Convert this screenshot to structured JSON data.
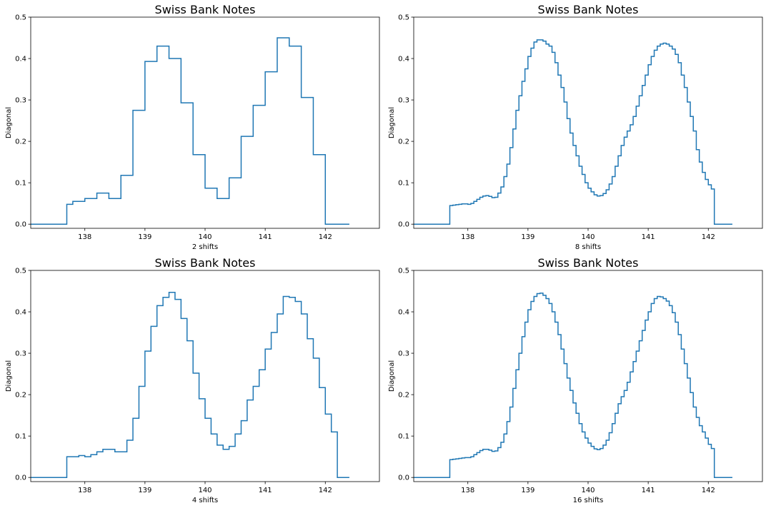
{
  "chart_data": [
    {
      "type": "line",
      "drawstyle": "steps-post",
      "title": "Swiss Bank Notes",
      "xlabel": "2 shifts",
      "ylabel": "Diagonal",
      "xlim": [
        137.1,
        142.9
      ],
      "ylim": [
        -0.01,
        0.5
      ],
      "xticks": [
        138,
        139,
        140,
        141,
        142
      ],
      "yticks": [
        0.0,
        0.1,
        0.2,
        0.3,
        0.4,
        0.5
      ],
      "color": "#1f77b4",
      "x": [
        137.1,
        137.7,
        137.8,
        138.0,
        138.2,
        138.4,
        138.6,
        138.8,
        139.0,
        139.2,
        139.4,
        139.6,
        139.8,
        140.0,
        140.2,
        140.4,
        140.6,
        140.8,
        141.0,
        141.2,
        141.4,
        141.6,
        141.8,
        142.0,
        142.4
      ],
      "y": [
        0.0,
        0.048,
        0.055,
        0.062,
        0.075,
        0.062,
        0.118,
        0.275,
        0.393,
        0.43,
        0.4,
        0.293,
        0.168,
        0.087,
        0.062,
        0.112,
        0.212,
        0.287,
        0.368,
        0.45,
        0.43,
        0.306,
        0.168,
        0.0,
        0.0
      ]
    },
    {
      "type": "line",
      "drawstyle": "steps-post",
      "title": "Swiss Bank Notes",
      "xlabel": "8 shifts",
      "ylabel": "Diagonal",
      "xlim": [
        137.1,
        142.9
      ],
      "ylim": [
        -0.01,
        0.5
      ],
      "xticks": [
        138,
        139,
        140,
        141,
        142
      ],
      "yticks": [
        0.0,
        0.1,
        0.2,
        0.3,
        0.4,
        0.5
      ],
      "color": "#1f77b4",
      "x": [
        137.1,
        137.7,
        137.75,
        137.8,
        137.85,
        137.9,
        137.95,
        138.0,
        138.05,
        138.1,
        138.15,
        138.2,
        138.25,
        138.3,
        138.35,
        138.4,
        138.45,
        138.5,
        138.55,
        138.6,
        138.65,
        138.7,
        138.75,
        138.8,
        138.85,
        138.9,
        138.95,
        139.0,
        139.05,
        139.1,
        139.15,
        139.2,
        139.25,
        139.3,
        139.35,
        139.4,
        139.45,
        139.5,
        139.55,
        139.6,
        139.65,
        139.7,
        139.75,
        139.8,
        139.85,
        139.9,
        139.95,
        140.0,
        140.05,
        140.1,
        140.15,
        140.2,
        140.25,
        140.3,
        140.35,
        140.4,
        140.45,
        140.5,
        140.55,
        140.6,
        140.65,
        140.7,
        140.75,
        140.8,
        140.85,
        140.9,
        140.95,
        141.0,
        141.05,
        141.1,
        141.15,
        141.2,
        141.25,
        141.3,
        141.35,
        141.4,
        141.45,
        141.5,
        141.55,
        141.6,
        141.65,
        141.7,
        141.75,
        141.8,
        141.85,
        141.9,
        141.95,
        142.0,
        142.05,
        142.1,
        142.15,
        142.2,
        142.25,
        142.3,
        142.4
      ],
      "y": [
        0.0,
        0.045,
        0.046,
        0.047,
        0.048,
        0.049,
        0.049,
        0.048,
        0.05,
        0.055,
        0.06,
        0.065,
        0.068,
        0.069,
        0.067,
        0.064,
        0.065,
        0.075,
        0.09,
        0.115,
        0.145,
        0.185,
        0.23,
        0.275,
        0.31,
        0.345,
        0.375,
        0.405,
        0.425,
        0.44,
        0.445,
        0.445,
        0.442,
        0.435,
        0.43,
        0.415,
        0.39,
        0.36,
        0.33,
        0.295,
        0.255,
        0.22,
        0.19,
        0.165,
        0.14,
        0.12,
        0.1,
        0.087,
        0.078,
        0.071,
        0.068,
        0.069,
        0.074,
        0.083,
        0.097,
        0.115,
        0.14,
        0.165,
        0.19,
        0.21,
        0.225,
        0.24,
        0.26,
        0.285,
        0.31,
        0.335,
        0.36,
        0.385,
        0.405,
        0.42,
        0.43,
        0.435,
        0.437,
        0.435,
        0.43,
        0.423,
        0.41,
        0.39,
        0.36,
        0.33,
        0.295,
        0.26,
        0.225,
        0.18,
        0.15,
        0.125,
        0.108,
        0.095,
        0.085,
        0.0,
        0.0,
        0.0,
        0.0,
        0.0,
        0.0
      ]
    },
    {
      "type": "line",
      "drawstyle": "steps-post",
      "title": "Swiss Bank Notes",
      "xlabel": "4 shifts",
      "ylabel": "Diagonal",
      "xlim": [
        137.1,
        142.9
      ],
      "ylim": [
        -0.01,
        0.5
      ],
      "xticks": [
        138,
        139,
        140,
        141,
        142
      ],
      "yticks": [
        0.0,
        0.1,
        0.2,
        0.3,
        0.4,
        0.5
      ],
      "color": "#1f77b4",
      "x": [
        137.1,
        137.7,
        137.8,
        137.9,
        138.0,
        138.1,
        138.2,
        138.3,
        138.4,
        138.5,
        138.6,
        138.7,
        138.8,
        138.9,
        139.0,
        139.1,
        139.2,
        139.3,
        139.4,
        139.5,
        139.6,
        139.7,
        139.8,
        139.9,
        140.0,
        140.1,
        140.2,
        140.3,
        140.4,
        140.5,
        140.6,
        140.7,
        140.8,
        140.9,
        141.0,
        141.1,
        141.2,
        141.3,
        141.4,
        141.5,
        141.6,
        141.7,
        141.8,
        141.9,
        142.0,
        142.1,
        142.2,
        142.4
      ],
      "y": [
        0.0,
        0.05,
        0.05,
        0.053,
        0.05,
        0.055,
        0.062,
        0.068,
        0.068,
        0.062,
        0.062,
        0.09,
        0.143,
        0.22,
        0.305,
        0.365,
        0.415,
        0.435,
        0.447,
        0.43,
        0.384,
        0.33,
        0.252,
        0.19,
        0.143,
        0.105,
        0.078,
        0.068,
        0.075,
        0.105,
        0.137,
        0.187,
        0.22,
        0.26,
        0.31,
        0.35,
        0.395,
        0.437,
        0.435,
        0.425,
        0.395,
        0.335,
        0.288,
        0.217,
        0.153,
        0.11,
        0.0,
        0.0
      ]
    },
    {
      "type": "line",
      "drawstyle": "steps-post",
      "title": "Swiss Bank Notes",
      "xlabel": "16 shifts",
      "ylabel": "Diagonal",
      "xlim": [
        137.1,
        142.9
      ],
      "ylim": [
        -0.01,
        0.5
      ],
      "xticks": [
        138,
        139,
        140,
        141,
        142
      ],
      "yticks": [
        0.0,
        0.1,
        0.2,
        0.3,
        0.4,
        0.5
      ],
      "color": "#1f77b4",
      "x": [
        137.1,
        137.7,
        137.75,
        137.8,
        137.85,
        137.9,
        137.95,
        138.0,
        138.05,
        138.1,
        138.15,
        138.2,
        138.25,
        138.3,
        138.35,
        138.4,
        138.45,
        138.5,
        138.55,
        138.6,
        138.65,
        138.7,
        138.75,
        138.8,
        138.85,
        138.9,
        138.95,
        139.0,
        139.05,
        139.1,
        139.15,
        139.2,
        139.25,
        139.3,
        139.35,
        139.4,
        139.45,
        139.5,
        139.55,
        139.6,
        139.65,
        139.7,
        139.75,
        139.8,
        139.85,
        139.9,
        139.95,
        140.0,
        140.05,
        140.1,
        140.15,
        140.2,
        140.25,
        140.3,
        140.35,
        140.4,
        140.45,
        140.5,
        140.55,
        140.6,
        140.65,
        140.7,
        140.75,
        140.8,
        140.85,
        140.9,
        140.95,
        141.0,
        141.05,
        141.1,
        141.15,
        141.2,
        141.25,
        141.3,
        141.35,
        141.4,
        141.45,
        141.5,
        141.55,
        141.6,
        141.65,
        141.7,
        141.75,
        141.8,
        141.85,
        141.9,
        141.95,
        142.0,
        142.05,
        142.1,
        142.15,
        142.2,
        142.25,
        142.3,
        142.35,
        142.4
      ],
      "y": [
        0.0,
        0.043,
        0.044,
        0.045,
        0.046,
        0.047,
        0.048,
        0.048,
        0.05,
        0.055,
        0.06,
        0.065,
        0.068,
        0.068,
        0.066,
        0.063,
        0.064,
        0.072,
        0.085,
        0.105,
        0.135,
        0.17,
        0.215,
        0.26,
        0.3,
        0.34,
        0.375,
        0.405,
        0.425,
        0.437,
        0.444,
        0.445,
        0.44,
        0.432,
        0.42,
        0.4,
        0.375,
        0.345,
        0.31,
        0.275,
        0.24,
        0.21,
        0.18,
        0.155,
        0.13,
        0.11,
        0.095,
        0.083,
        0.075,
        0.069,
        0.067,
        0.07,
        0.078,
        0.09,
        0.108,
        0.13,
        0.155,
        0.178,
        0.195,
        0.21,
        0.23,
        0.255,
        0.28,
        0.305,
        0.33,
        0.355,
        0.38,
        0.4,
        0.42,
        0.432,
        0.437,
        0.436,
        0.432,
        0.426,
        0.415,
        0.398,
        0.375,
        0.345,
        0.31,
        0.275,
        0.24,
        0.205,
        0.17,
        0.145,
        0.125,
        0.11,
        0.095,
        0.08,
        0.07,
        0.0,
        0.0,
        0.0,
        0.0,
        0.0,
        0.0,
        0.0
      ]
    }
  ]
}
